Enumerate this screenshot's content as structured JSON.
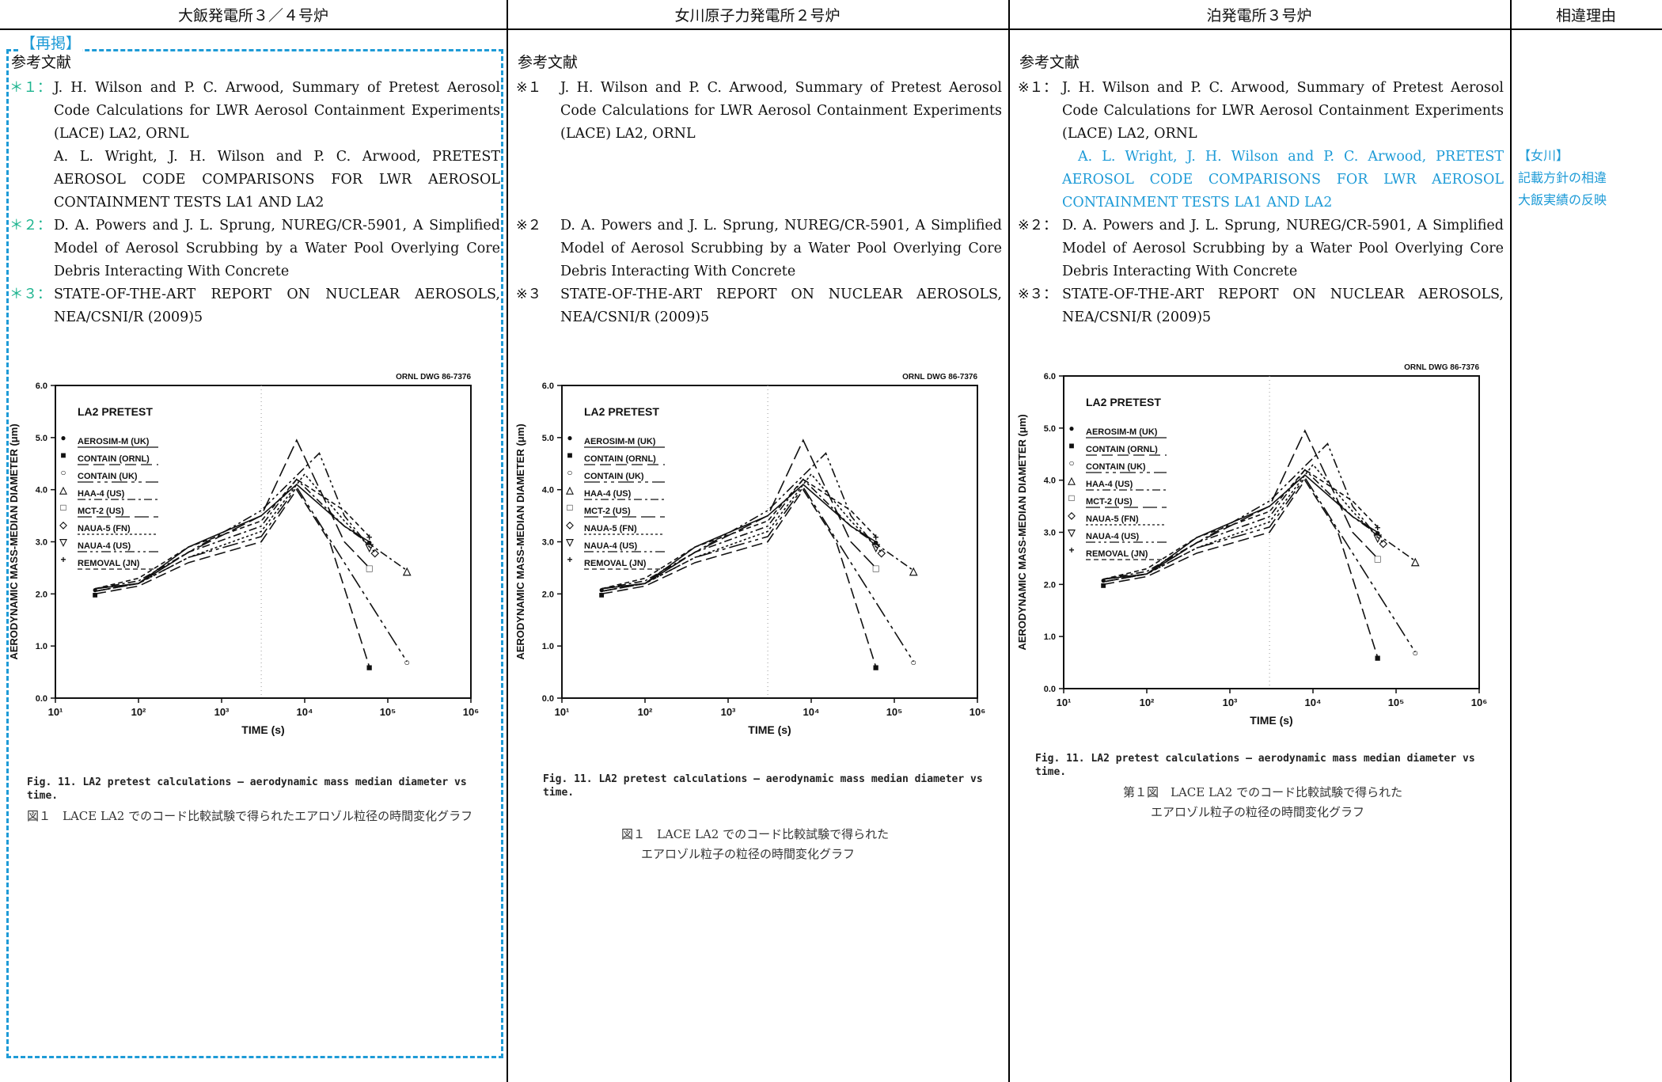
{
  "headers": {
    "col1": "大飯発電所３／４号炉",
    "col2": "女川原子力発電所２号炉",
    "col3": "泊発電所３号炉",
    "col4": "相違理由"
  },
  "col1": {
    "repost_label": "【再掲】",
    "refs_title": "参考文献",
    "refs": [
      {
        "mark": "＊１：",
        "lines": [
          "J. H. Wilson and P. C. Arwood, Summary of Pretest Aerosol Code Calculations for LWR Aerosol Containment Experiments (LACE) LA2, ORNL",
          "A. L. Wright, J. H. Wilson and P. C. Arwood, PRETEST AEROSOL CODE COMPARISONS FOR LWR AEROSOL CONTAINMENT TESTS LA1 AND LA2"
        ]
      },
      {
        "mark": "＊２：",
        "lines": [
          "D. A. Powers and J. L. Sprung, NUREG/CR-5901, A Simplified Model of Aerosol Scrubbing by a Water Pool Overlying Core Debris Interacting With Concrete"
        ]
      },
      {
        "mark": "＊３：",
        "lines": [
          "STATE-OF-THE-ART REPORT ON NUCLEAR AEROSOLS, NEA/CSNI/R (2009)5"
        ]
      }
    ],
    "caption_en": "Fig. 11.  LA2 pretest calculations — aerodynamic mass median diameter vs time.",
    "caption_jp": "図１　LACE LA2 でのコード比較試験で得られたエアロゾル粒径の時間変化グラフ"
  },
  "col2": {
    "refs_title": "参考文献",
    "refs": [
      {
        "mark": "※１",
        "lines": [
          "J. H. Wilson and P. C. Arwood, Summary of Pretest Aerosol Code Calculations for LWR Aerosol Containment Experiments (LACE) LA2, ORNL"
        ]
      },
      {
        "mark": "※２",
        "lines": [
          "D. A. Powers and J. L. Sprung, NUREG/CR-5901, A Simplified Model of Aerosol Scrubbing by a Water Pool Overlying Core Debris Interacting With Concrete"
        ]
      },
      {
        "mark": "※３",
        "lines": [
          "STATE-OF-THE-ART REPORT ON NUCLEAR AEROSOLS, NEA/CSNI/R (2009)5"
        ]
      }
    ],
    "caption_en": "Fig. 11.  LA2 pretest calculations — aerodynamic mass median diameter vs time.",
    "caption_jp_1": "図１　LACE LA2 でのコード比較試験で得られた",
    "caption_jp_2": "エアロゾル粒子の粒径の時間変化グラフ"
  },
  "col3": {
    "refs_title": "参考文献",
    "refs": [
      {
        "mark": "※１：",
        "lines": [
          "J. H. Wilson and P. C. Arwood, Summary of Pretest Aerosol Code Calculations for LWR Aerosol Containment Experiments (LACE) LA2, ORNL"
        ],
        "blue_lines": [
          "A. L. Wright, J. H. Wilson and P. C. Arwood, PRETEST AEROSOL CODE COMPARISONS FOR LWR AEROSOL CONTAINMENT TESTS LA1 AND LA2"
        ]
      },
      {
        "mark": "※２：",
        "lines": [
          "D. A. Powers and J. L. Sprung, NUREG/CR-5901, A Simplified Model of Aerosol Scrubbing by a Water Pool Overlying Core Debris Interacting With Concrete"
        ]
      },
      {
        "mark": "※３：",
        "lines": [
          "STATE-OF-THE-ART REPORT ON NUCLEAR AEROSOLS, NEA/CSNI/R (2009)5"
        ]
      }
    ],
    "caption_en": "Fig. 11.  LA2 pretest calculations — aerodynamic mass median diameter vs time.",
    "caption_jp_1": "第１図　LACE LA2 でのコード比較試験で得られた",
    "caption_jp_2": "エアロゾル粒子の粒径の時間変化グラフ"
  },
  "col4": {
    "reason_1": "【女川】",
    "reason_2": "記載方針の相違",
    "reason_3": "大飯実績の反映"
  },
  "colors": {
    "blue": "#1e9bd7",
    "green": "#1db48f"
  },
  "chart_data": {
    "type": "line",
    "title": "LA2 PRETEST",
    "corner_label": "ORNL DWG 86-7376",
    "xlabel": "TIME (s)",
    "ylabel": "AERODYNAMIC MASS-MEDIAN DIAMETER (μm)",
    "xscale": "log",
    "xlim": [
      10,
      1000000
    ],
    "ylim": [
      0,
      6.0
    ],
    "xticks": [
      "10¹",
      "10²",
      "10³",
      "10⁴",
      "10⁵",
      "10⁶"
    ],
    "yticks": [
      "0.0",
      "1.0",
      "2.0",
      "3.0",
      "4.0",
      "5.0",
      "6.0"
    ],
    "legend_placement": "upper-left",
    "series": [
      {
        "name": "AEROSIM-M (UK)",
        "marker": "●",
        "x": [
          30,
          100,
          400,
          3000,
          8000,
          30000,
          60000
        ],
        "y": [
          2.1,
          2.2,
          2.9,
          3.5,
          4.1,
          3.3,
          3.0
        ]
      },
      {
        "name": "CONTAIN (ORNL)",
        "marker": "■",
        "x": [
          30,
          100,
          400,
          3000,
          8000,
          20000,
          60000
        ],
        "y": [
          2.0,
          2.15,
          2.6,
          3.0,
          4.0,
          3.0,
          0.6
        ]
      },
      {
        "name": "CONTAIN (UK)",
        "marker": "○",
        "x": [
          30,
          100,
          400,
          3000,
          8000,
          30000,
          170000
        ],
        "y": [
          2.05,
          2.2,
          2.7,
          3.1,
          4.05,
          2.6,
          0.7
        ]
      },
      {
        "name": "HAA-4 (US)",
        "marker": "△",
        "x": [
          30,
          100,
          400,
          3000,
          8000,
          30000,
          170000
        ],
        "y": [
          2.1,
          2.25,
          2.8,
          3.3,
          4.2,
          3.3,
          2.45
        ]
      },
      {
        "name": "MCT-2 (US)",
        "marker": "□",
        "x": [
          30,
          100,
          400,
          3000,
          8000,
          30000,
          60000
        ],
        "y": [
          2.05,
          2.2,
          2.8,
          3.5,
          4.95,
          3.0,
          2.5
        ]
      },
      {
        "name": "NAUA-5 (FN)",
        "marker": "◇",
        "x": [
          30,
          100,
          400,
          3000,
          10000,
          30000,
          70000
        ],
        "y": [
          2.1,
          2.2,
          2.7,
          3.2,
          4.3,
          3.4,
          2.8
        ]
      },
      {
        "name": "NAUA-4 (US)",
        "marker": "▽",
        "x": [
          30,
          100,
          400,
          3000,
          15000,
          30000,
          60000
        ],
        "y": [
          2.05,
          2.2,
          2.8,
          3.6,
          4.7,
          3.5,
          2.9
        ]
      },
      {
        "name": "REMOVAL (JN)",
        "marker": "+",
        "x": [
          30,
          100,
          400,
          3000,
          8000,
          30000,
          60000
        ],
        "y": [
          2.1,
          2.3,
          2.9,
          3.4,
          4.2,
          3.6,
          3.1
        ]
      }
    ]
  }
}
